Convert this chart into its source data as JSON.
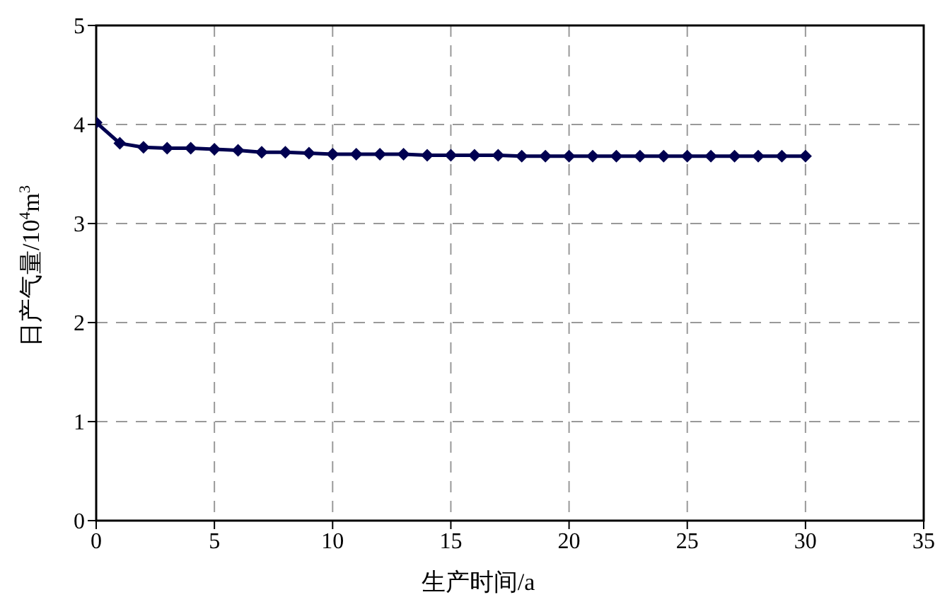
{
  "chart_data": {
    "type": "line",
    "xlabel": "生产时间/a",
    "ylabel": "日产气量/10$^{4}$m$^{3}$",
    "x": [
      0,
      1,
      2,
      3,
      4,
      5,
      6,
      7,
      8,
      9,
      10,
      11,
      12,
      13,
      14,
      15,
      16,
      17,
      18,
      19,
      20,
      21,
      22,
      23,
      24,
      25,
      26,
      27,
      28,
      29,
      30
    ],
    "series": [
      {
        "color": "#000050",
        "values": [
          4.02,
          3.81,
          3.77,
          3.76,
          3.76,
          3.75,
          3.74,
          3.72,
          3.72,
          3.71,
          3.7,
          3.7,
          3.7,
          3.7,
          3.69,
          3.69,
          3.69,
          3.69,
          3.68,
          3.68,
          3.68,
          3.68,
          3.68,
          3.68,
          3.68,
          3.68,
          3.68,
          3.68,
          3.68,
          3.68,
          3.68
        ]
      }
    ],
    "xlim": [
      0,
      35
    ],
    "xticks": [
      0,
      5,
      10,
      15,
      20,
      25,
      30,
      35
    ],
    "ylim": [
      0,
      5
    ],
    "yticks": [
      0,
      1,
      2,
      3,
      4,
      5
    ],
    "grid": true,
    "marker": "diamond",
    "line_style": "solid"
  }
}
